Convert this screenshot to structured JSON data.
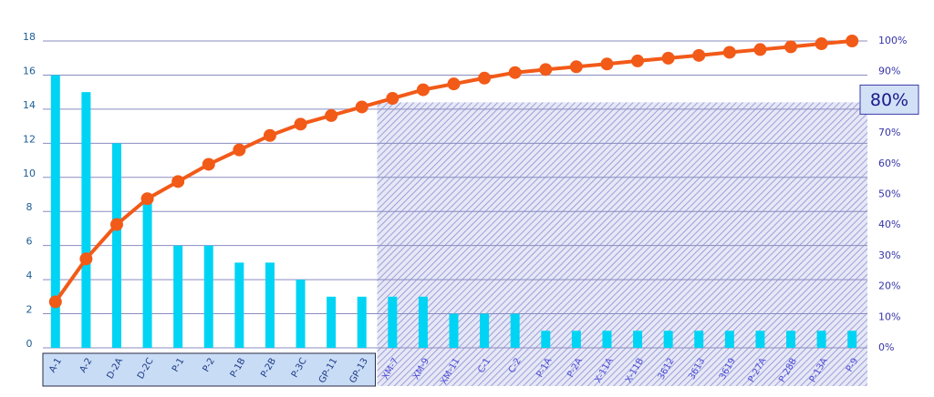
{
  "chart_data": {
    "type": "pareto",
    "categories": [
      "A-1",
      "A-2",
      "D-2A",
      "D-2C",
      "P-1",
      "P-2",
      "P-1B",
      "P-2B",
      "P-3C",
      "GP-11",
      "GP-13",
      "XM-7",
      "XM-9",
      "XM-11",
      "C-1",
      "C-2",
      "P-1A",
      "P-2A",
      "X-11A",
      "X-11B",
      "3612",
      "3613",
      "3619",
      "P-27A",
      "P-28B",
      "P-13A",
      "P-9"
    ],
    "series": [
      {
        "type": "bar",
        "color": "#00d4f4",
        "values": [
          16,
          15,
          12,
          9,
          6,
          6,
          5,
          5,
          4,
          3,
          3,
          3,
          3,
          2,
          2,
          2,
          1,
          1,
          1,
          1,
          1,
          1,
          1,
          1,
          1,
          1,
          1
        ]
      },
      {
        "type": "line",
        "axis": "y2",
        "color": "#f25a18",
        "values": [
          15.0,
          29.0,
          40.2,
          48.6,
          54.2,
          59.8,
          64.5,
          69.2,
          72.9,
          75.7,
          78.5,
          81.3,
          84.1,
          86.0,
          87.9,
          89.7,
          90.7,
          91.6,
          92.5,
          93.5,
          94.4,
          95.3,
          96.3,
          97.2,
          98.1,
          99.1,
          100
        ]
      }
    ],
    "ylim": [
      0,
      18
    ],
    "yticks": [
      0,
      2,
      4,
      6,
      8,
      10,
      12,
      14,
      16,
      18
    ],
    "y2lim": [
      0,
      100
    ],
    "y2ticks": [
      {
        "value": 0,
        "label": "0%"
      },
      {
        "value": 10,
        "label": "10%"
      },
      {
        "value": 20,
        "label": "20%"
      },
      {
        "value": 30,
        "label": "30%"
      },
      {
        "value": 40,
        "label": "40%"
      },
      {
        "value": 50,
        "label": "50%"
      },
      {
        "value": 60,
        "label": "60%"
      },
      {
        "value": 70,
        "label": "70%"
      },
      {
        "value": 80,
        "label": "80%"
      },
      {
        "value": 90,
        "label": "90%"
      },
      {
        "value": 100,
        "label": "100%"
      }
    ],
    "threshold": {
      "value": 80,
      "label": "80%",
      "first_index": 11
    },
    "grid": true
  }
}
